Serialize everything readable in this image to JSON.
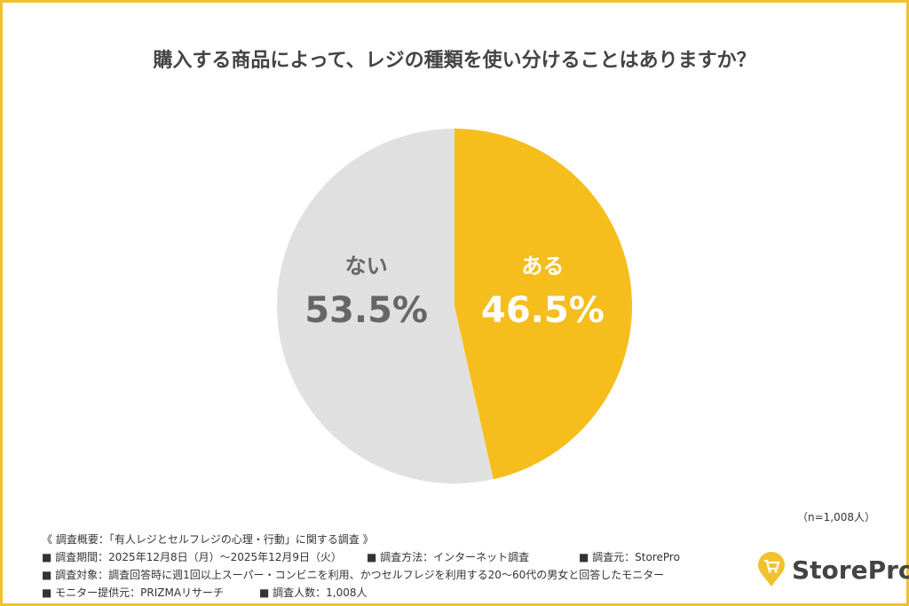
{
  "title": "購入する商品によって、レジの種類を使い分けることはありますか？",
  "chart_data": {
    "type": "pie",
    "title": "購入する商品によって、レジの種類を使い分けることはありますか？",
    "slices": [
      {
        "label": "ある",
        "value": 46.5,
        "display": "46.5%",
        "color": "#F5BE1C",
        "text_color": "#FFFFFF"
      },
      {
        "label": "ない",
        "value": 53.5,
        "display": "53.5%",
        "color": "#E0E0E0",
        "text_color": "#666666"
      }
    ],
    "start_angle": "top",
    "direction": "clockwise"
  },
  "sample_note": "（n=1,008人）",
  "footer": {
    "heading": "《 調査概要：「有人レジとセルフレジの心理・行動」に関する調査 》",
    "period": "■ 調査期間：2025年12月8日（月）～2025年12月9日（火）",
    "method": "■ 調査方法：インターネット調査",
    "source": "■ 調査元：StorePro",
    "target": "■ 調査対象：調査回答時に週1回以上スーパー・コンビニを利用、かつセルフレジを利用する20～60代の男女と回答したモニター",
    "provider": "■ モニター提供元：PRIZMAリサーチ",
    "count": "■ 調査人数：1,008人"
  },
  "logo": {
    "text": "StorePro",
    "icon": "cart-pin-icon",
    "color": "#F2C12E"
  },
  "frame_color": "#F2C12E"
}
